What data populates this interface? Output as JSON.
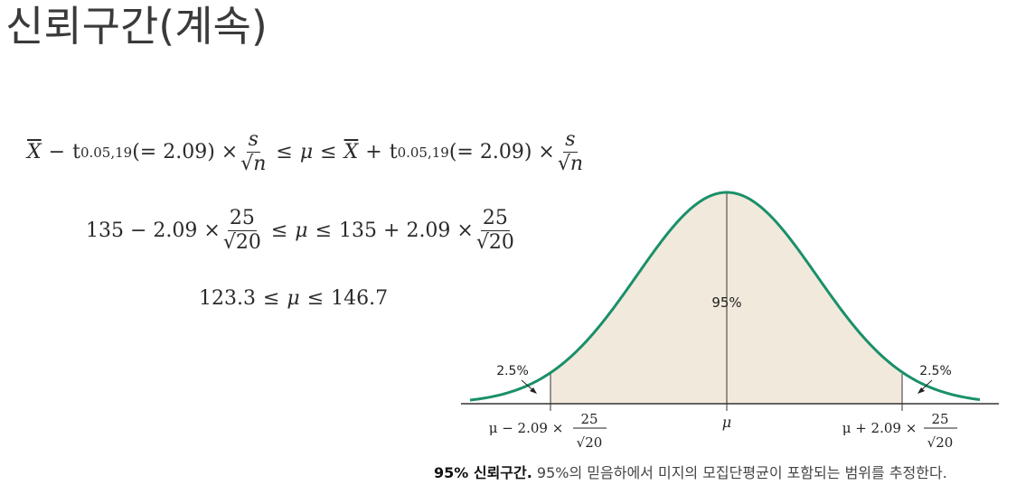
{
  "slide": {
    "title": "신뢰구간(계속)"
  },
  "equations": {
    "line1": {
      "xbar": "X",
      "minus": "−",
      "t": "t",
      "t_sub": "0.05,19",
      "t_val": "(= 2.09) ×",
      "frac_num": "s",
      "frac_den": "√n",
      "leq1": "≤",
      "mu": "μ",
      "leq2": "≤",
      "xbar2": "X",
      "plus": "+",
      "t2": "t",
      "t2_sub": "0.05,19",
      "t2_val": "(= 2.09) ×",
      "frac2_num": "s",
      "frac2_den": "√n"
    },
    "line2": {
      "left": "135 − 2.09 ×",
      "frac_num": "25",
      "frac_den": "√20",
      "leq1": "≤",
      "mu": "μ",
      "leq2": "≤",
      "right": "135 + 2.09 ×",
      "frac2_num": "25",
      "frac2_den": "√20"
    },
    "line3": {
      "left": "123.3",
      "leq1": "≤",
      "mu": "μ",
      "leq2": "≤",
      "right": "146.7"
    }
  },
  "diagram": {
    "center_label": "95%",
    "left_tail_label": "2.5%",
    "right_tail_label": "2.5%",
    "axis_mu": "μ",
    "left_bound": "μ − 2.09 ×",
    "left_bound_num": "25",
    "left_bound_den": "√20",
    "right_bound": "μ + 2.09 ×",
    "right_bound_num": "25",
    "right_bound_den": "√20",
    "curve_color": "#1a9068",
    "fill_color": "#f1e9dc"
  },
  "caption": {
    "bold": "95% 신뢰구간.",
    "text": " 95%의 믿음하에서 미지의 모집단평균이 포함되는 범위를 추정한다."
  }
}
